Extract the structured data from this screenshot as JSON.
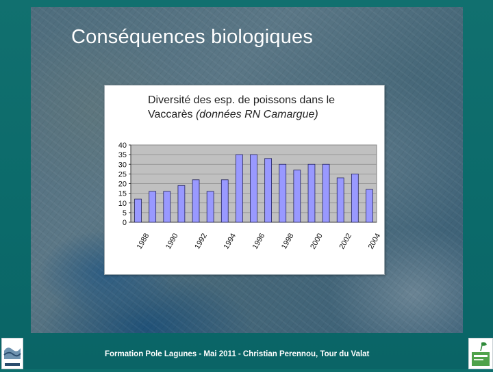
{
  "slide": {
    "title": "Conséquences biologiques",
    "footer": "Formation Pole Lagunes - Mai 2011  -  Christian Perennou, Tour du Valat"
  },
  "colors": {
    "bar_fill": "#9999ff",
    "bar_stroke": "#22225a",
    "plot_bg": "#c0c0c0",
    "slide_bg": "#0e6f6d"
  },
  "chart_data": {
    "type": "bar",
    "title_main": "Diversité des esp. de poissons dans le Vaccarès",
    "title_line1": "Diversité des esp. de poissons dans le",
    "title_line2_plain": "Vaccarès ",
    "title_line2_italic": "(données RN Camargue)",
    "xlabel": "",
    "ylabel": "",
    "ylim": [
      0,
      40
    ],
    "yticks": [
      0,
      5,
      10,
      15,
      20,
      25,
      30,
      35,
      40
    ],
    "grid": true,
    "legend": "none",
    "categories": [
      1988,
      1989,
      1990,
      1991,
      1992,
      1993,
      1994,
      1995,
      1996,
      1997,
      1998,
      1999,
      2000,
      2001,
      2002,
      2003,
      2004
    ],
    "x_tick_labels": [
      "1988",
      "1990",
      "1992",
      "1994",
      "1996",
      "1998",
      "2000",
      "2002",
      "2004"
    ],
    "values": [
      12,
      16,
      16,
      19,
      22,
      16,
      22,
      35,
      35,
      33,
      30,
      27,
      30,
      30,
      23,
      25,
      17
    ]
  }
}
